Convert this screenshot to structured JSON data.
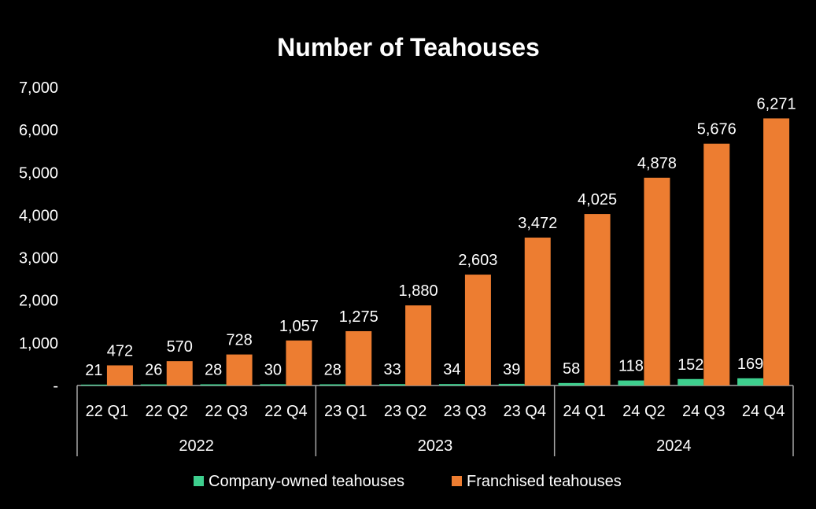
{
  "chart_data": {
    "type": "bar",
    "title": "Number of Teahouses",
    "categories": [
      "22 Q1",
      "22 Q2",
      "22 Q3",
      "22 Q4",
      "23 Q1",
      "23 Q2",
      "23 Q3",
      "23 Q4",
      "24 Q1",
      "24 Q2",
      "24 Q3",
      "24 Q4"
    ],
    "groups": [
      {
        "label": "2022",
        "count": 4
      },
      {
        "label": "2023",
        "count": 4
      },
      {
        "label": "2024",
        "count": 4
      }
    ],
    "series": [
      {
        "name": "Company-owned teahouses",
        "color": "#3ecf8e",
        "values": [
          21,
          26,
          28,
          30,
          28,
          33,
          34,
          39,
          58,
          118,
          152,
          169
        ],
        "labels": [
          "21",
          "26",
          "28",
          "30",
          "28",
          "33",
          "34",
          "39",
          "58",
          "118",
          "152",
          "169"
        ]
      },
      {
        "name": "Franchised teahouses",
        "color": "#ed7d31",
        "values": [
          472,
          570,
          728,
          1057,
          1275,
          1880,
          2603,
          3472,
          4025,
          4878,
          5676,
          6271
        ],
        "labels": [
          "472",
          "570",
          "728",
          "1,057",
          "1,275",
          "1,880",
          "2,603",
          "3,472",
          "4,025",
          "4,878",
          "5,676",
          "6,271"
        ]
      }
    ],
    "ylim": [
      0,
      7000
    ],
    "yticks": [
      0,
      1000,
      2000,
      3000,
      4000,
      5000,
      6000,
      7000
    ],
    "ytick_labels": [
      "-",
      "1,000",
      "2,000",
      "3,000",
      "4,000",
      "5,000",
      "6,000",
      "7,000"
    ],
    "grid": false,
    "legend_position": "bottom"
  }
}
